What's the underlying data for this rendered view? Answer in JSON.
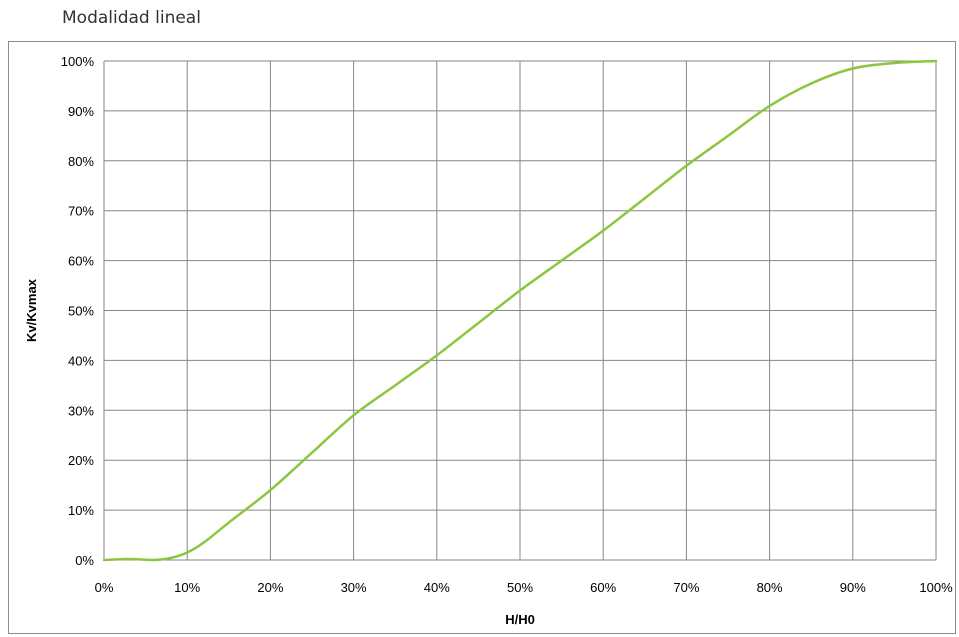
{
  "chart_data": {
    "type": "line",
    "title": "Modalidad lineal",
    "xlabel": "H/H0",
    "ylabel": "Kv/Kvmax",
    "xlim": [
      0,
      100
    ],
    "ylim": [
      0,
      100
    ],
    "x_ticks": [
      "0%",
      "10%",
      "20%",
      "30%",
      "40%",
      "50%",
      "60%",
      "70%",
      "80%",
      "90%",
      "100%"
    ],
    "y_ticks": [
      "0%",
      "10%",
      "20%",
      "30%",
      "40%",
      "50%",
      "60%",
      "70%",
      "80%",
      "90%",
      "100%"
    ],
    "grid": true,
    "series": [
      {
        "color": "#8cc63f",
        "x": [
          0,
          3,
          6,
          8,
          10,
          12,
          15,
          20,
          25,
          30,
          35,
          40,
          45,
          50,
          55,
          60,
          65,
          70,
          75,
          80,
          85,
          90,
          95,
          100
        ],
        "y": [
          0,
          0.2,
          0,
          0.4,
          1.5,
          3.5,
          7.5,
          14,
          21.5,
          29,
          35,
          41,
          47.5,
          54,
          60,
          66,
          72.5,
          79,
          85,
          91,
          95.5,
          98.5,
          99.6,
          100
        ]
      }
    ]
  }
}
